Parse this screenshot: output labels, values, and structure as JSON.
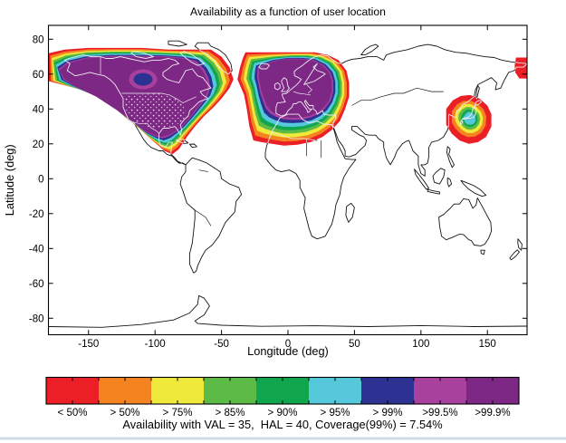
{
  "figure": {
    "title": "Availability as a function of user location",
    "xlabel": "Longitude (deg)",
    "ylabel": "Latitude (deg)"
  },
  "colorbar": {
    "labels": [
      "< 50%",
      "> 50%",
      "> 75%",
      "> 85%",
      "> 90%",
      "> 95%",
      "> 99%",
      ">99.5%",
      ">99.9%"
    ],
    "colors": [
      "#ec1f27",
      "#f58420",
      "#efe93b",
      "#5cbb46",
      "#0fa64e",
      "#55c8dc",
      "#2d3192",
      "#a8409e",
      "#7d2884"
    ],
    "caption": "Availability with VAL = 35,  HAL = 40, Coverage(99%) = 7.54%"
  },
  "chart_data": {
    "type": "heatmap",
    "subtype": "filled-contour availability map over world coastlines",
    "title": "Availability as a function of user location",
    "xlabel": "Longitude (deg)",
    "ylabel": "Latitude (deg)",
    "xlim": [
      -180,
      180
    ],
    "ylim": [
      -90,
      90
    ],
    "xticks": [
      -150,
      -100,
      -50,
      0,
      50,
      100,
      150
    ],
    "yticks": [
      -80,
      -60,
      -40,
      -20,
      0,
      20,
      40,
      60,
      80
    ],
    "grid": false,
    "legend_position": "bottom-colorbar",
    "levels": [
      {
        "label": "< 50%",
        "color": "#ec1f27"
      },
      {
        "label": "> 50%",
        "color": "#f58420"
      },
      {
        "label": "> 75%",
        "color": "#efe93b"
      },
      {
        "label": "> 85%",
        "color": "#5cbb46"
      },
      {
        "label": "> 90%",
        "color": "#0fa64e"
      },
      {
        "label": "> 95%",
        "color": "#55c8dc"
      },
      {
        "label": "> 99%",
        "color": "#2d3192"
      },
      {
        "label": ">99.5%",
        "color": "#a8409e"
      },
      {
        "label": ">99.9%",
        "color": "#7d2884"
      }
    ],
    "coverage_regions": [
      {
        "name": "North America",
        "lon_range": [
          -180,
          -41
        ],
        "lat_range": [
          14,
          75
        ],
        "peak_availability": ">99.9%",
        "note": "concentric bands red to dark purple; small >99% blue pocket near lon -109, lat 57; speckled texture over contiguous US"
      },
      {
        "name": "Europe / North Africa",
        "lon_range": [
          -38,
          46
        ],
        "lat_range": [
          19,
          72.5
        ],
        "peak_availability": ">99.9%",
        "note": "clipped square top edge at lat 72.5; bands pinch toward North America blob near lon -40, lat 55"
      },
      {
        "name": "Japan / East Asia",
        "lon_range": [
          119,
          153
        ],
        "lat_range": [
          20,
          48
        ],
        "peak_availability": "> 95%",
        "note": "small concentric rings red to cyan centered near lon 137, lat 35"
      },
      {
        "name": "Bering Sea wrap-around patch",
        "lon_range": [
          170,
          180
        ],
        "lat_range": [
          57,
          70
        ],
        "peak_availability": "< 50%"
      }
    ],
    "annotation": "Availability with VAL = 35,  HAL = 40, Coverage(99%) = 7.54%",
    "parameters": {
      "VAL": 35,
      "HAL": 40,
      "Coverage(99%)": "7.54%"
    }
  }
}
